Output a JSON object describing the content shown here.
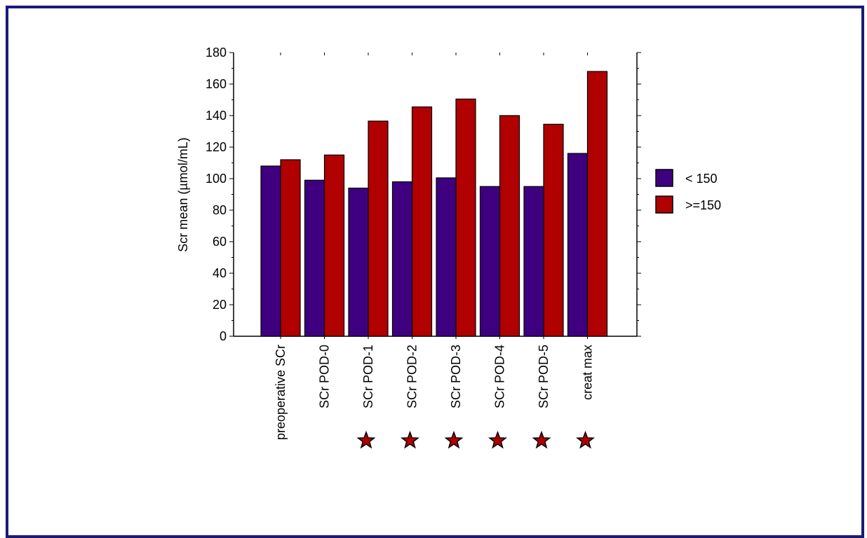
{
  "chart_data": {
    "type": "bar",
    "title": "",
    "xlabel": "",
    "ylabel": "Scr mean (µmol/mL)",
    "ylim": [
      0,
      180
    ],
    "yticks": [
      0,
      20,
      40,
      60,
      80,
      100,
      120,
      140,
      160,
      180
    ],
    "categories": [
      "preoperative SCr",
      "SCr POD-0",
      "SCr POD-1",
      "SCr POD-2",
      "SCr POD-3",
      "SCr POD-4",
      "SCr POD-5",
      "creat max"
    ],
    "series": [
      {
        "name": "< 150",
        "color": "#3f007f",
        "values": [
          108,
          99,
          94,
          98,
          100.5,
          95,
          95,
          116
        ]
      },
      {
        "name": ">=150",
        "color": "#b00000",
        "values": [
          112,
          115,
          136.5,
          145.5,
          150.5,
          140,
          134.5,
          168
        ]
      }
    ],
    "significance_markers": [
      false,
      false,
      true,
      true,
      true,
      true,
      true,
      true
    ],
    "marker_symbol": "star",
    "marker_color": "#b00000",
    "legend_position": "right",
    "grid": false
  }
}
